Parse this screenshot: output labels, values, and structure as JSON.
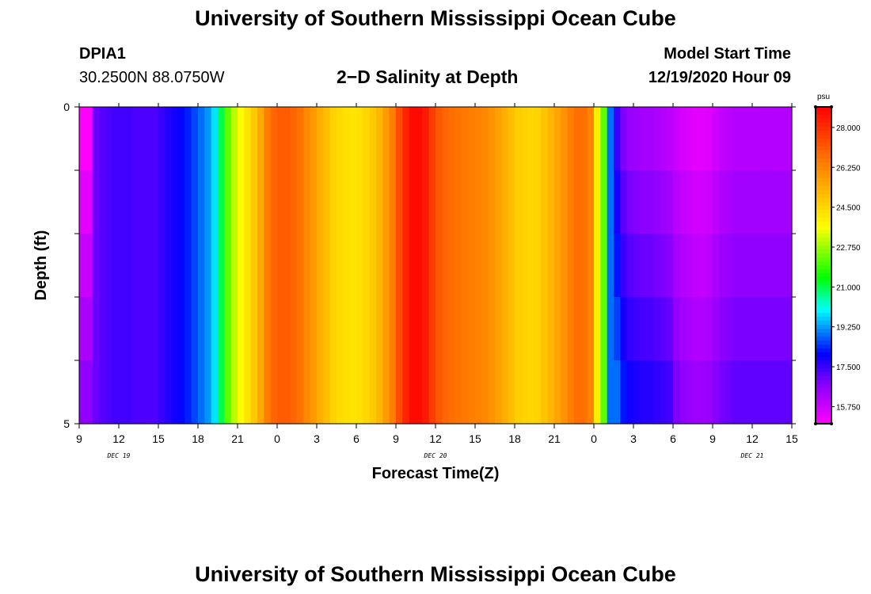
{
  "page": {
    "title_top": "University of Southern Mississippi Ocean Cube",
    "title_bottom": "University of Southern Mississippi Ocean Cube",
    "station_id": "DPIA1",
    "station_coords": "30.2500N 88.0750W",
    "model_start_label": "Model Start Time",
    "model_start_value": "12/19/2020 Hour 09"
  },
  "chart_data": {
    "type": "heatmap",
    "title": "2−D Salinity at Depth",
    "xlabel": "Forecast Time(Z)",
    "ylabel": "Depth (ft)",
    "x_hours_range": [
      0,
      54
    ],
    "ylim": [
      0,
      5
    ],
    "y_inverted": true,
    "y_tick_labels": [
      "0",
      "",
      "",
      "",
      "",
      "5"
    ],
    "x_tick_labels": [
      "9",
      "12",
      "15",
      "18",
      "21",
      "0",
      "3",
      "6",
      "9",
      "12",
      "15",
      "18",
      "21",
      "0",
      "3",
      "6",
      "9",
      "12",
      "15"
    ],
    "day_labels": [
      "DEC 19",
      "DEC 20",
      "DEC 21"
    ],
    "colorbar": {
      "unit": "psu",
      "min": 15.0,
      "max": 28.9,
      "tick_labels": [
        "15.750",
        "17.500",
        "19.250",
        "21.000",
        "22.750",
        "24.500",
        "26.250",
        "28.000"
      ],
      "tick_values": [
        15.75,
        17.5,
        19.25,
        21.0,
        22.75,
        24.5,
        26.25,
        28.0
      ]
    },
    "surface_salinity_psu": [
      15.0,
      15.6,
      17.0,
      17.2,
      17.3,
      17.4,
      17.4,
      17.4,
      17.3,
      17.3,
      17.3,
      17.3,
      17.5,
      17.7,
      17.9,
      18.1,
      18.3,
      18.6,
      18.9,
      19.2,
      19.8,
      21.0,
      22.2,
      23.0,
      23.6,
      24.2,
      24.8,
      25.5,
      26.4,
      26.9,
      27.1,
      27.1,
      26.9,
      26.6,
      26.2,
      25.8,
      25.4,
      25.0,
      24.6,
      24.4,
      24.3,
      24.2,
      24.3,
      24.5,
      24.8,
      25.2,
      25.8,
      26.4,
      27.4,
      28.2,
      28.7,
      28.7,
      28.4,
      27.7,
      27.2,
      26.9,
      26.7,
      26.6,
      26.5,
      26.4,
      26.3,
      26.2,
      26.0,
      25.7,
      25.4,
      25.0,
      24.7,
      24.6,
      24.5,
      24.6,
      24.9,
      25.2,
      25.6,
      26.0,
      26.4,
      26.7,
      26.7,
      26.3,
      24.0,
      22.2,
      18.9,
      17.5,
      16.8,
      16.5,
      16.4,
      16.3,
      16.3,
      16.2,
      16.1,
      16.0,
      15.8,
      15.6,
      15.5,
      15.4,
      15.4,
      15.5,
      15.7,
      15.9,
      16.0,
      16.1,
      16.1,
      16.1,
      16.1,
      16.1,
      16.1,
      16.1,
      16.1,
      16.1
    ]
  }
}
